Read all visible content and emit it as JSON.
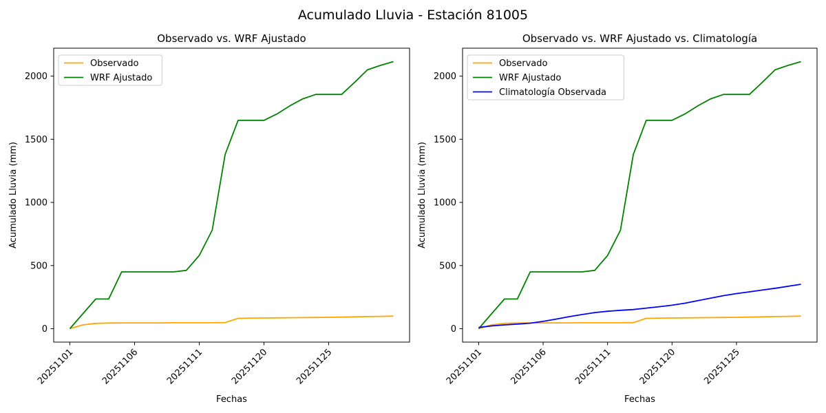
{
  "figure_title": "Acumulado Lluvia - Estación 81005",
  "colors": {
    "observado": "#FFA500",
    "wrf_ajustado": "#008000",
    "climatologia": "#0000FF",
    "axes": "#000000",
    "legend_border": "#cccccc",
    "background": "#ffffff"
  },
  "chart_data": [
    {
      "type": "line",
      "title": "Observado vs. WRF Ajustado",
      "xlabel": "Fechas",
      "ylabel": "Acumulado Lluvia (mm)",
      "grid": false,
      "legend_position": "upper left",
      "x": [
        "20251101",
        "20251102",
        "20251103",
        "20251104",
        "20251105",
        "20251106",
        "20251107",
        "20251108",
        "20251109",
        "20251110",
        "20251111",
        "20251112",
        "20251113",
        "20251114",
        "20251115",
        "20251120",
        "20251121",
        "20251122",
        "20251123",
        "20251124",
        "20251125",
        "20251126",
        "20251127",
        "20251128",
        "20251129",
        "20251130"
      ],
      "x_tick_indices": [
        0,
        5,
        10,
        15,
        20
      ],
      "x_tick_labels": [
        "20251101",
        "20251106",
        "20251111",
        "20251120",
        "20251125"
      ],
      "y_ticks": [
        0,
        500,
        1000,
        1500,
        2000
      ],
      "ylim": [
        -106,
        2221
      ],
      "series": [
        {
          "name": "Observado",
          "color": "#FFA500",
          "values": [
            0,
            30,
            42,
            45,
            46,
            46,
            46,
            46,
            47,
            47,
            47,
            47,
            48,
            82,
            84,
            85,
            86,
            87,
            88,
            89,
            90,
            92,
            94,
            96,
            98,
            100
          ]
        },
        {
          "name": "WRF Ajustado",
          "color": "#008000",
          "values": [
            0,
            118,
            235,
            235,
            450,
            450,
            450,
            450,
            450,
            462,
            580,
            780,
            1380,
            1650,
            1650,
            1650,
            1700,
            1765,
            1820,
            1855,
            1855,
            1855,
            1950,
            2050,
            2085,
            2115
          ]
        }
      ]
    },
    {
      "type": "line",
      "title": "Observado vs. WRF Ajustado vs. Climatología",
      "xlabel": "Fechas",
      "ylabel": "Acumulado Lluvia (mm)",
      "grid": false,
      "legend_position": "upper left",
      "x": [
        "20251101",
        "20251102",
        "20251103",
        "20251104",
        "20251105",
        "20251106",
        "20251107",
        "20251108",
        "20251109",
        "20251110",
        "20251111",
        "20251112",
        "20251113",
        "20251114",
        "20251115",
        "20251120",
        "20251121",
        "20251122",
        "20251123",
        "20251124",
        "20251125",
        "20251126",
        "20251127",
        "20251128",
        "20251129",
        "20251130"
      ],
      "x_tick_indices": [
        0,
        5,
        10,
        15,
        20
      ],
      "x_tick_labels": [
        "20251101",
        "20251106",
        "20251111",
        "20251120",
        "20251125"
      ],
      "y_ticks": [
        0,
        500,
        1000,
        1500,
        2000
      ],
      "ylim": [
        -106,
        2221
      ],
      "series": [
        {
          "name": "Observado",
          "color": "#FFA500",
          "values": [
            0,
            30,
            42,
            45,
            46,
            46,
            46,
            46,
            47,
            47,
            47,
            47,
            48,
            82,
            84,
            85,
            86,
            87,
            88,
            89,
            90,
            92,
            94,
            96,
            98,
            100
          ]
        },
        {
          "name": "WRF Ajustado",
          "color": "#008000",
          "values": [
            0,
            118,
            235,
            235,
            450,
            450,
            450,
            450,
            450,
            462,
            580,
            780,
            1380,
            1650,
            1650,
            1650,
            1700,
            1765,
            1820,
            1855,
            1855,
            1855,
            1950,
            2050,
            2085,
            2115
          ]
        },
        {
          "name": "Climatología Observada",
          "color": "#0000FF",
          "values": [
            10,
            22,
            30,
            36,
            44,
            58,
            76,
            95,
            112,
            128,
            138,
            146,
            152,
            163,
            174,
            186,
            202,
            222,
            242,
            262,
            278,
            292,
            306,
            320,
            336,
            352
          ]
        }
      ]
    }
  ]
}
